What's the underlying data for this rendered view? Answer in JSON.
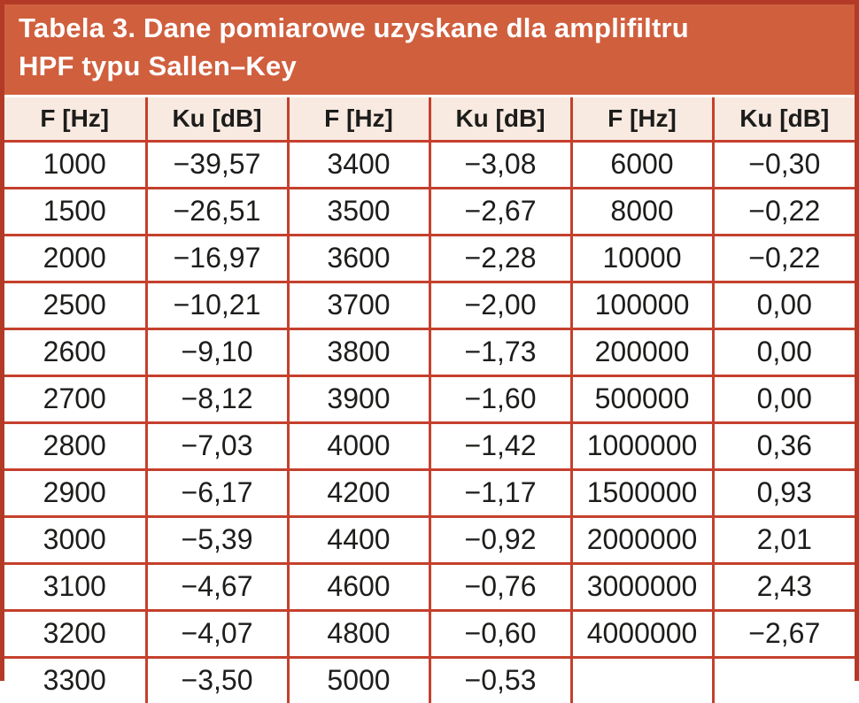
{
  "title": {
    "line1": "Tabela 3. Dane pomiarowe uzyskane dla amplifiltru",
    "line2": "HPF typu Sallen–Key",
    "full": "Tabela 3. Dane pomiarowe uzyskane dla amplifiltru HPF typu Sallen–Key"
  },
  "colors": {
    "title_bg": "#d05f3e",
    "title_text": "#ffffff",
    "frame_border": "#b23a26",
    "grid_border": "#c5402d",
    "header_bg": "#f8eae1",
    "cell_bg": "#ffffff",
    "cell_text": "#1d1d1b"
  },
  "chart_data": {
    "type": "table",
    "title": "Tabela 3. Dane pomiarowe uzyskane dla amplifiltru HPF typu Sallen–Key",
    "headers": [
      "F [Hz]",
      "Ku [dB]",
      "F [Hz]",
      "Ku [dB]",
      "F [Hz]",
      "Ku [dB]"
    ],
    "rows": [
      [
        "1000",
        "−39,57",
        "3400",
        "−3,08",
        "6000",
        "−0,30"
      ],
      [
        "1500",
        "−26,51",
        "3500",
        "−2,67",
        "8000",
        "−0,22"
      ],
      [
        "2000",
        "−16,97",
        "3600",
        "−2,28",
        "10000",
        "−0,22"
      ],
      [
        "2500",
        "−10,21",
        "3700",
        "−2,00",
        "100000",
        "0,00"
      ],
      [
        "2600",
        "−9,10",
        "3800",
        "−1,73",
        "200000",
        "0,00"
      ],
      [
        "2700",
        "−8,12",
        "3900",
        "−1,60",
        "500000",
        "0,00"
      ],
      [
        "2800",
        "−7,03",
        "4000",
        "−1,42",
        "1000000",
        "0,36"
      ],
      [
        "2900",
        "−6,17",
        "4200",
        "−1,17",
        "1500000",
        "0,93"
      ],
      [
        "3000",
        "−5,39",
        "4400",
        "−0,92",
        "2000000",
        "2,01"
      ],
      [
        "3100",
        "−4,67",
        "4600",
        "−0,76",
        "3000000",
        "2,43"
      ],
      [
        "3200",
        "−4,07",
        "4800",
        "−0,60",
        "4000000",
        "−2,67"
      ],
      [
        "3300",
        "−3,50",
        "5000",
        "−0,53",
        "",
        ""
      ]
    ]
  }
}
